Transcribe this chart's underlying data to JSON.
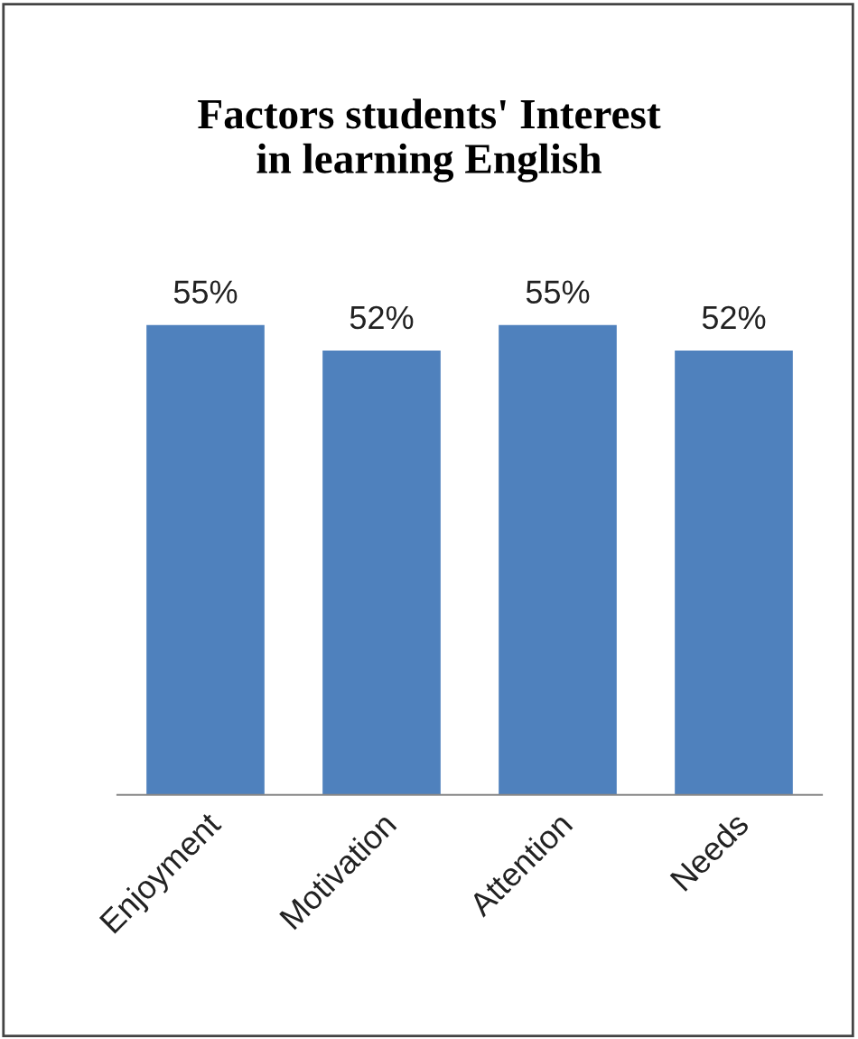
{
  "chart_data": {
    "type": "bar",
    "title": "Factors students' Interest\nin learning English",
    "categories": [
      "Enjoyment",
      "Motivation",
      "Attention",
      "Needs"
    ],
    "values": [
      55,
      52,
      55,
      52
    ],
    "color": "#4f81bd",
    "value_labels": [
      "55%",
      "52%",
      "55%",
      "52%"
    ],
    "tick_labels": "x",
    "grid": false,
    "legend": false
  }
}
